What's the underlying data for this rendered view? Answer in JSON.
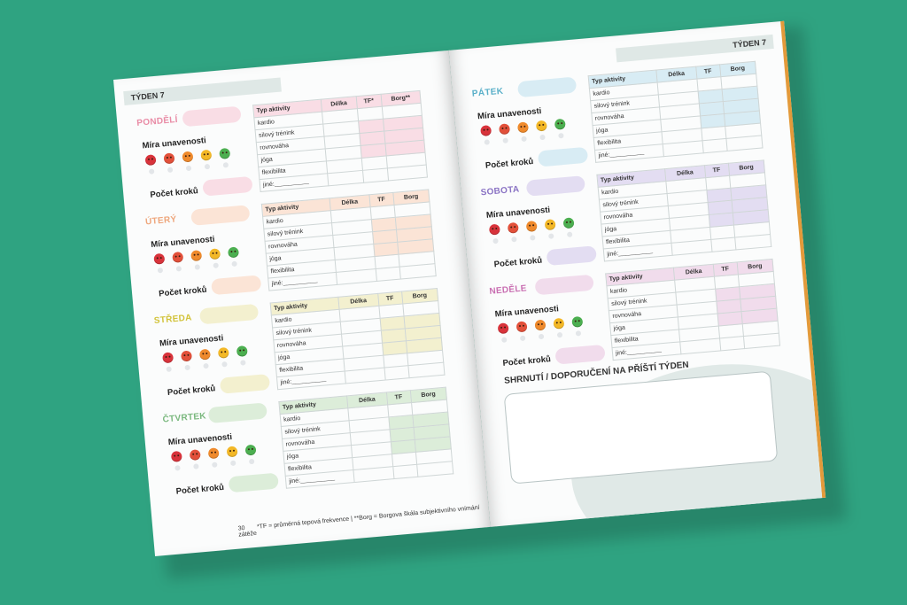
{
  "left_page": {
    "week": "TÝDEN 7",
    "page_number": "30",
    "footnote": "*TF = průměrná tepová frekvence | **Borg = Borgova škála subjektivního vnímání zátěže",
    "days": [
      {
        "name": "PONDĚLÍ",
        "color": "#e98ca6",
        "tint": "#f9dde5"
      },
      {
        "name": "ÚTERÝ",
        "color": "#eea67c",
        "tint": "#fbe4d6"
      },
      {
        "name": "STŘEDA",
        "color": "#d2c33a",
        "tint": "#f3f0cf"
      },
      {
        "name": "ČTVRTEK",
        "color": "#7ab87e",
        "tint": "#dcedd9"
      }
    ]
  },
  "right_page": {
    "week": "TÝDEN 7",
    "days": [
      {
        "name": "PÁTEK",
        "color": "#5ab0c9",
        "tint": "#d8ecf4"
      },
      {
        "name": "SOBOTA",
        "color": "#8a73c4",
        "tint": "#e3ddf2"
      },
      {
        "name": "NEDĚLE",
        "color": "#c96fb2",
        "tint": "#f1dcec"
      }
    ],
    "summary_title": "SHRNUTÍ / DOPORUČENÍ NA PŘÍŠTÍ TÝDEN"
  },
  "labels": {
    "fatigue": "Míra unavenosti",
    "steps": "Počet kroků",
    "col_activity": "Typ aktivity",
    "col_length": "Délka",
    "col_tf_first": "TF*",
    "col_borg_first": "Borg**",
    "col_tf": "TF",
    "col_borg": "Borg"
  },
  "activities": [
    "kardio",
    "silový trénink",
    "rovnováha",
    "jóga",
    "flexibilita",
    "jiné:__________"
  ],
  "face_colors": [
    "#d8333b",
    "#e2503a",
    "#ef8a2c",
    "#f3b827",
    "#4caf50"
  ]
}
